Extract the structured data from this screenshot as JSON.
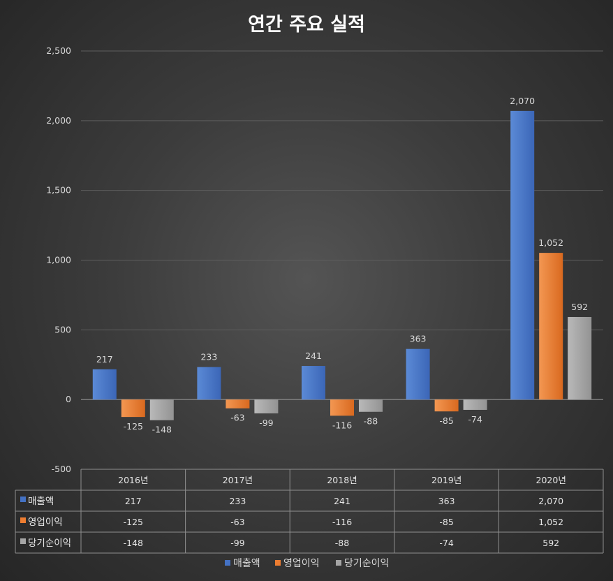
{
  "chart_data": {
    "type": "bar",
    "title": "연간 주요 실적",
    "categories": [
      "2016년",
      "2017년",
      "2018년",
      "2019년",
      "2020년"
    ],
    "series": [
      {
        "name": "매출액",
        "values": [
          217,
          233,
          241,
          363,
          2070
        ],
        "labels": [
          "217",
          "233",
          "241",
          "363",
          "2,070"
        ],
        "color": "#4472C4"
      },
      {
        "name": "영업이익",
        "values": [
          -125,
          -63,
          -116,
          -85,
          1052
        ],
        "labels": [
          "-125",
          "-63",
          "-116",
          "-85",
          "1,052"
        ],
        "color": "#ED7D31"
      },
      {
        "name": "당기순이익",
        "values": [
          -148,
          -99,
          -88,
          -74,
          592
        ],
        "labels": [
          "-148",
          "-99",
          "-88",
          "-74",
          "592"
        ],
        "color": "#A5A5A5"
      }
    ],
    "ylim": [
      -500,
      2500
    ],
    "yticks": [
      -500,
      0,
      500,
      1000,
      1500,
      2000,
      2500
    ],
    "ytick_labels": [
      "-500",
      "0",
      "500",
      "1,000",
      "1,500",
      "2,000",
      "2,500"
    ],
    "xlabel": "",
    "ylabel": "",
    "grid": true,
    "legend": "bottom",
    "data_table": true
  }
}
